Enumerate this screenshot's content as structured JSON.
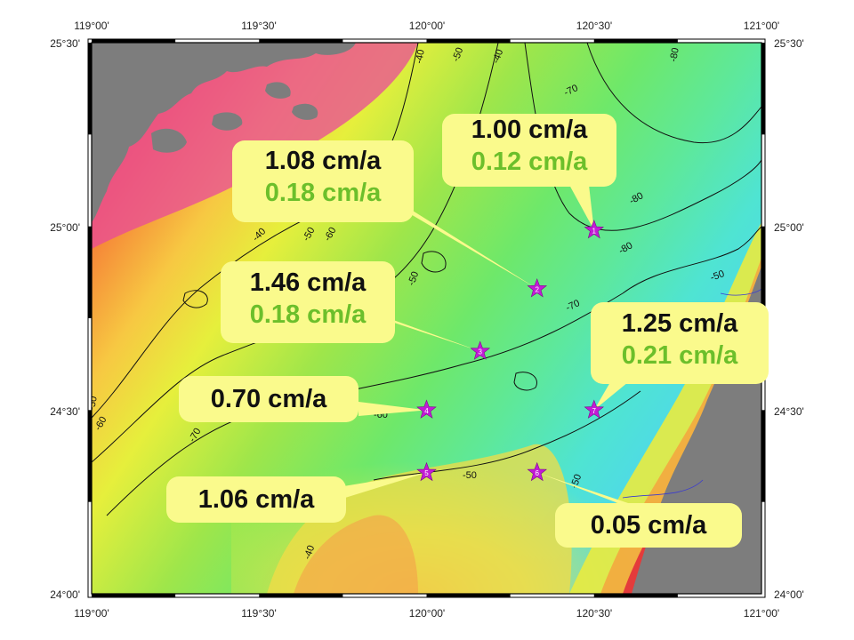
{
  "colors": {
    "land": "#7d7d7d",
    "frame": "#000000",
    "callout_bg": "#fafa8c",
    "rate_primary": "#111111",
    "rate_secondary": "#6cbf2b",
    "station_star": "#c21bd6"
  },
  "axes": {
    "lon_ticks": [
      "119°00'",
      "119°30'",
      "120°00'",
      "120°30'",
      "121°00'"
    ],
    "lat_ticks": [
      "25°30'",
      "25°00'",
      "24°30'",
      "24°00'"
    ]
  },
  "contour_labels": [
    "-40",
    "-50",
    "-40",
    "-70",
    "-80",
    "-80",
    "-80",
    "-40",
    "-50",
    "-60",
    "-50",
    "-70",
    "-50",
    "-60",
    "-50",
    "-60",
    "-70",
    "-50",
    "-50",
    "-40"
  ],
  "stations": [
    {
      "id": "1",
      "lon": 120.5,
      "lat": 24.99
    },
    {
      "id": "2",
      "lon": 120.33,
      "lat": 24.83
    },
    {
      "id": "3",
      "lon": 120.16,
      "lat": 24.66
    },
    {
      "id": "4",
      "lon": 120.0,
      "lat": 24.5
    },
    {
      "id": "5",
      "lon": 120.0,
      "lat": 24.33
    },
    {
      "id": "6",
      "lon": 120.33,
      "lat": 24.33
    },
    {
      "id": "7",
      "lon": 120.5,
      "lat": 24.5
    }
  ],
  "callouts": [
    {
      "station": "1",
      "rate": "1.00 cm/a",
      "rate2": "0.12 cm/a"
    },
    {
      "station": "2",
      "rate": "1.08 cm/a",
      "rate2": "0.18 cm/a"
    },
    {
      "station": "3",
      "rate": "1.46 cm/a",
      "rate2": "0.18 cm/a"
    },
    {
      "station": "7",
      "rate": "1.25 cm/a",
      "rate2": "0.21 cm/a"
    },
    {
      "station": "4",
      "rate": "0.70 cm/a"
    },
    {
      "station": "5",
      "rate": "1.06 cm/a"
    },
    {
      "station": "6",
      "rate": "0.05 cm/a"
    }
  ]
}
